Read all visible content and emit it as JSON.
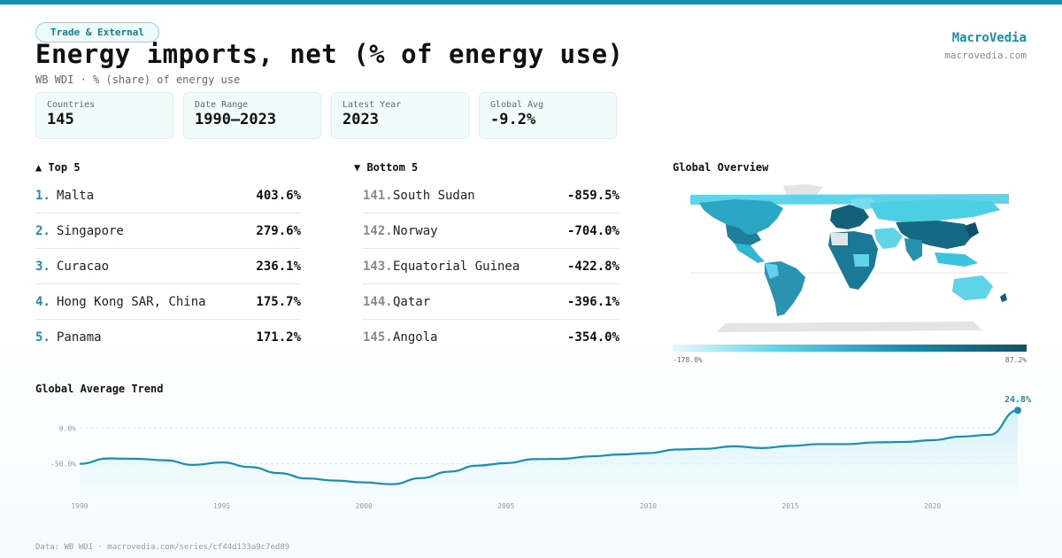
{
  "colors": {
    "accent": "#1a8db0",
    "dark_teal": "#134f63",
    "light_teal": "#5fd3ea",
    "land_na": "#e2e4e6"
  },
  "header": {
    "badge": "Trade & External",
    "title": "Energy imports, net (% of energy use)",
    "subtitle": "WB WDI · % (share) of energy use",
    "brand": "MacroVedia",
    "brand_url": "macrovedia.com"
  },
  "stats": [
    {
      "label": "Countries",
      "value": "145"
    },
    {
      "label": "Date Range",
      "value": "1990–2023"
    },
    {
      "label": "Latest Year",
      "value": "2023"
    },
    {
      "label": "Global Avg",
      "value": "-9.2%"
    }
  ],
  "top5": {
    "title": "▲ Top 5",
    "items": [
      {
        "rank": "1.",
        "name": "Malta",
        "value": "403.6%"
      },
      {
        "rank": "2.",
        "name": "Singapore",
        "value": "279.6%"
      },
      {
        "rank": "3.",
        "name": "Curacao",
        "value": "236.1%"
      },
      {
        "rank": "4.",
        "name": "Hong Kong SAR, China",
        "value": "175.7%"
      },
      {
        "rank": "5.",
        "name": "Panama",
        "value": "171.2%"
      }
    ]
  },
  "bottom5": {
    "title": "▼ Bottom 5",
    "items": [
      {
        "rank": "141.",
        "name": "South Sudan",
        "value": "-859.5%"
      },
      {
        "rank": "142.",
        "name": "Norway",
        "value": "-704.0%"
      },
      {
        "rank": "143.",
        "name": "Equatorial Guinea",
        "value": "-422.8%"
      },
      {
        "rank": "144.",
        "name": "Qatar",
        "value": "-396.1%"
      },
      {
        "rank": "145.",
        "name": "Angola",
        "value": "-354.0%"
      }
    ]
  },
  "map": {
    "title": "Global Overview",
    "legend_min": "-178.0%",
    "legend_max": "87.2%"
  },
  "chart_data": {
    "type": "area",
    "title": "Global Average Trend",
    "xlabel": "",
    "ylabel": "",
    "x": [
      1990,
      1991,
      1992,
      1993,
      1994,
      1995,
      1996,
      1997,
      1998,
      1999,
      2000,
      2001,
      2002,
      2003,
      2004,
      2005,
      2006,
      2007,
      2008,
      2009,
      2010,
      2011,
      2012,
      2013,
      2014,
      2015,
      2016,
      2017,
      2018,
      2019,
      2020,
      2021,
      2022,
      2023
    ],
    "series": [
      {
        "name": "Global average",
        "values": [
          -50.0,
          -42.5,
          -43.0,
          -45.0,
          -51.5,
          -48.0,
          -54.5,
          -63.0,
          -70.5,
          -73.5,
          -76.0,
          -78.5,
          -70.0,
          -61.0,
          -52.5,
          -49.0,
          -43.5,
          -43.0,
          -39.5,
          -37.0,
          -35.0,
          -30.0,
          -29.0,
          -25.5,
          -28.0,
          -25.0,
          -22.5,
          -22.5,
          -20.0,
          -19.5,
          -17.0,
          -12.0,
          -9.5,
          24.8
        ]
      }
    ],
    "y_ticks": [
      0,
      -50
    ],
    "y_tick_labels": [
      "0.0%",
      "-50.0%"
    ],
    "x_ticks": [
      1990,
      1995,
      2000,
      2005,
      2010,
      2015,
      2020
    ],
    "ylim": [
      -95,
      35
    ],
    "last_value_label": "24.8%",
    "grid": true
  },
  "footer": {
    "source": "Data: WB WDI · macrovedia.com/series/cf44d133a9c7ed89"
  }
}
